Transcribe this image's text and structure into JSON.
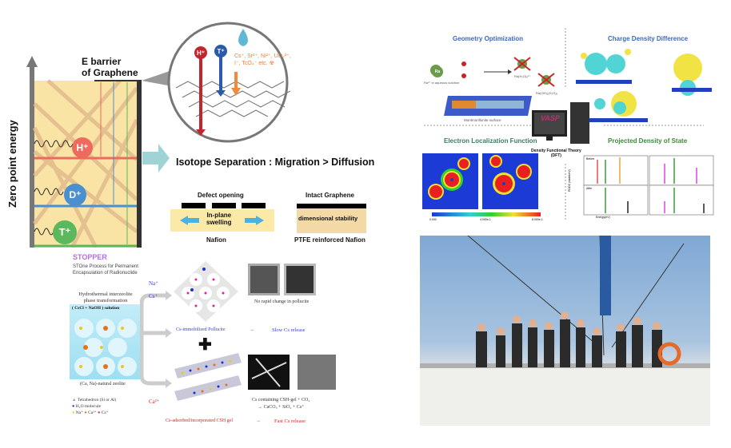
{
  "isotope_figure": {
    "y_axis_label": "Zero point energy",
    "barrier_label_line1": "E barrier",
    "barrier_label_line2": "of Graphene",
    "ions": [
      "H⁺",
      "D⁺",
      "T⁺"
    ],
    "ion_colors": [
      "#ec6a5e",
      "#4a8fd0",
      "#5cb85c"
    ],
    "zoom_ions": [
      "H⁺",
      "T⁺"
    ],
    "blocked_ions_line1": "Cs⁺, Sr²⁺, Ni²⁺, UO₂²⁺,",
    "blocked_ions_line2": "I⁻, TcO₄⁻ etc. ☢",
    "headline": "Isotope Separation : Migration > Diffusion",
    "nafion": {
      "top": "Defect opening",
      "inner_line1": "In-plane",
      "inner_line2": "swelling",
      "bottom": "Nafion"
    },
    "ptfe": {
      "top": "Intact Graphene",
      "inner": "dimensional stability",
      "bottom": "PTFE reinforced Nafion"
    }
  },
  "stopper_figure": {
    "title": "STOPPER",
    "subtitle_line1": "STOne Process for Permanent",
    "subtitle_line2": "Encapsulation of Radionuclide",
    "process_line1": "Hydrothermal interzeolite",
    "process_line2": "phase transformation",
    "solution": "( CsCl + NaOH ) solution",
    "zeolite_label": "(Ca, Na)-natural zeolite",
    "legend": [
      "Tetrahedron (Si or Al)",
      "H₂O molecule",
      "Na⁺",
      "Ca²⁺",
      "Cs⁺"
    ],
    "arrow_na": "Na⁺",
    "arrow_cs": "Cs⁺",
    "arrow_ca": "Ca²⁺",
    "plus": "✚",
    "pollucite_note": "No rapid change in pollucite",
    "pollucite_label": "Cs-immobilized Pollucite",
    "pollucite_arrow": "→",
    "pollucite_result": "Slow Cs release",
    "csh_note_line1": "Cs containing CSH-gel + CO₂",
    "csh_note_line2": "→ CaCO₃ + SiO₂ + Cs⁺",
    "csh_label": "Cs-adsorbed/incorporated CSH gel",
    "csh_arrow": "→",
    "csh_result": "Fast Cs release"
  },
  "dft_figure": {
    "geometry": {
      "title": "Geometry Optimization",
      "ra": "Ra",
      "ra_caption": "Ra²⁺ in aqueous solution",
      "product1": "Ra(H₂O)₈²⁺",
      "product2": "Ra(OH)₂(H₂O)₆",
      "surface": "Montmorillonite surface"
    },
    "charge_title": "Charge Density Difference",
    "elf": {
      "title": "Electron Localization Function",
      "scale": [
        "0.000",
        "4.000e-1",
        "8.000e-1"
      ]
    },
    "center_label_line1": "Density Functional Theory",
    "center_label_line2": "(DFT)",
    "monitor_text": "VASP",
    "pdos": {
      "title": "Projected Density of State",
      "ylabel": "PDOS (states/eV)",
      "xlabel": "Energy(eV)",
      "before": "Before",
      "after": "After"
    }
  },
  "photo": {
    "description_colors": [
      "#8fb3d6",
      "#cfd8de"
    ]
  }
}
